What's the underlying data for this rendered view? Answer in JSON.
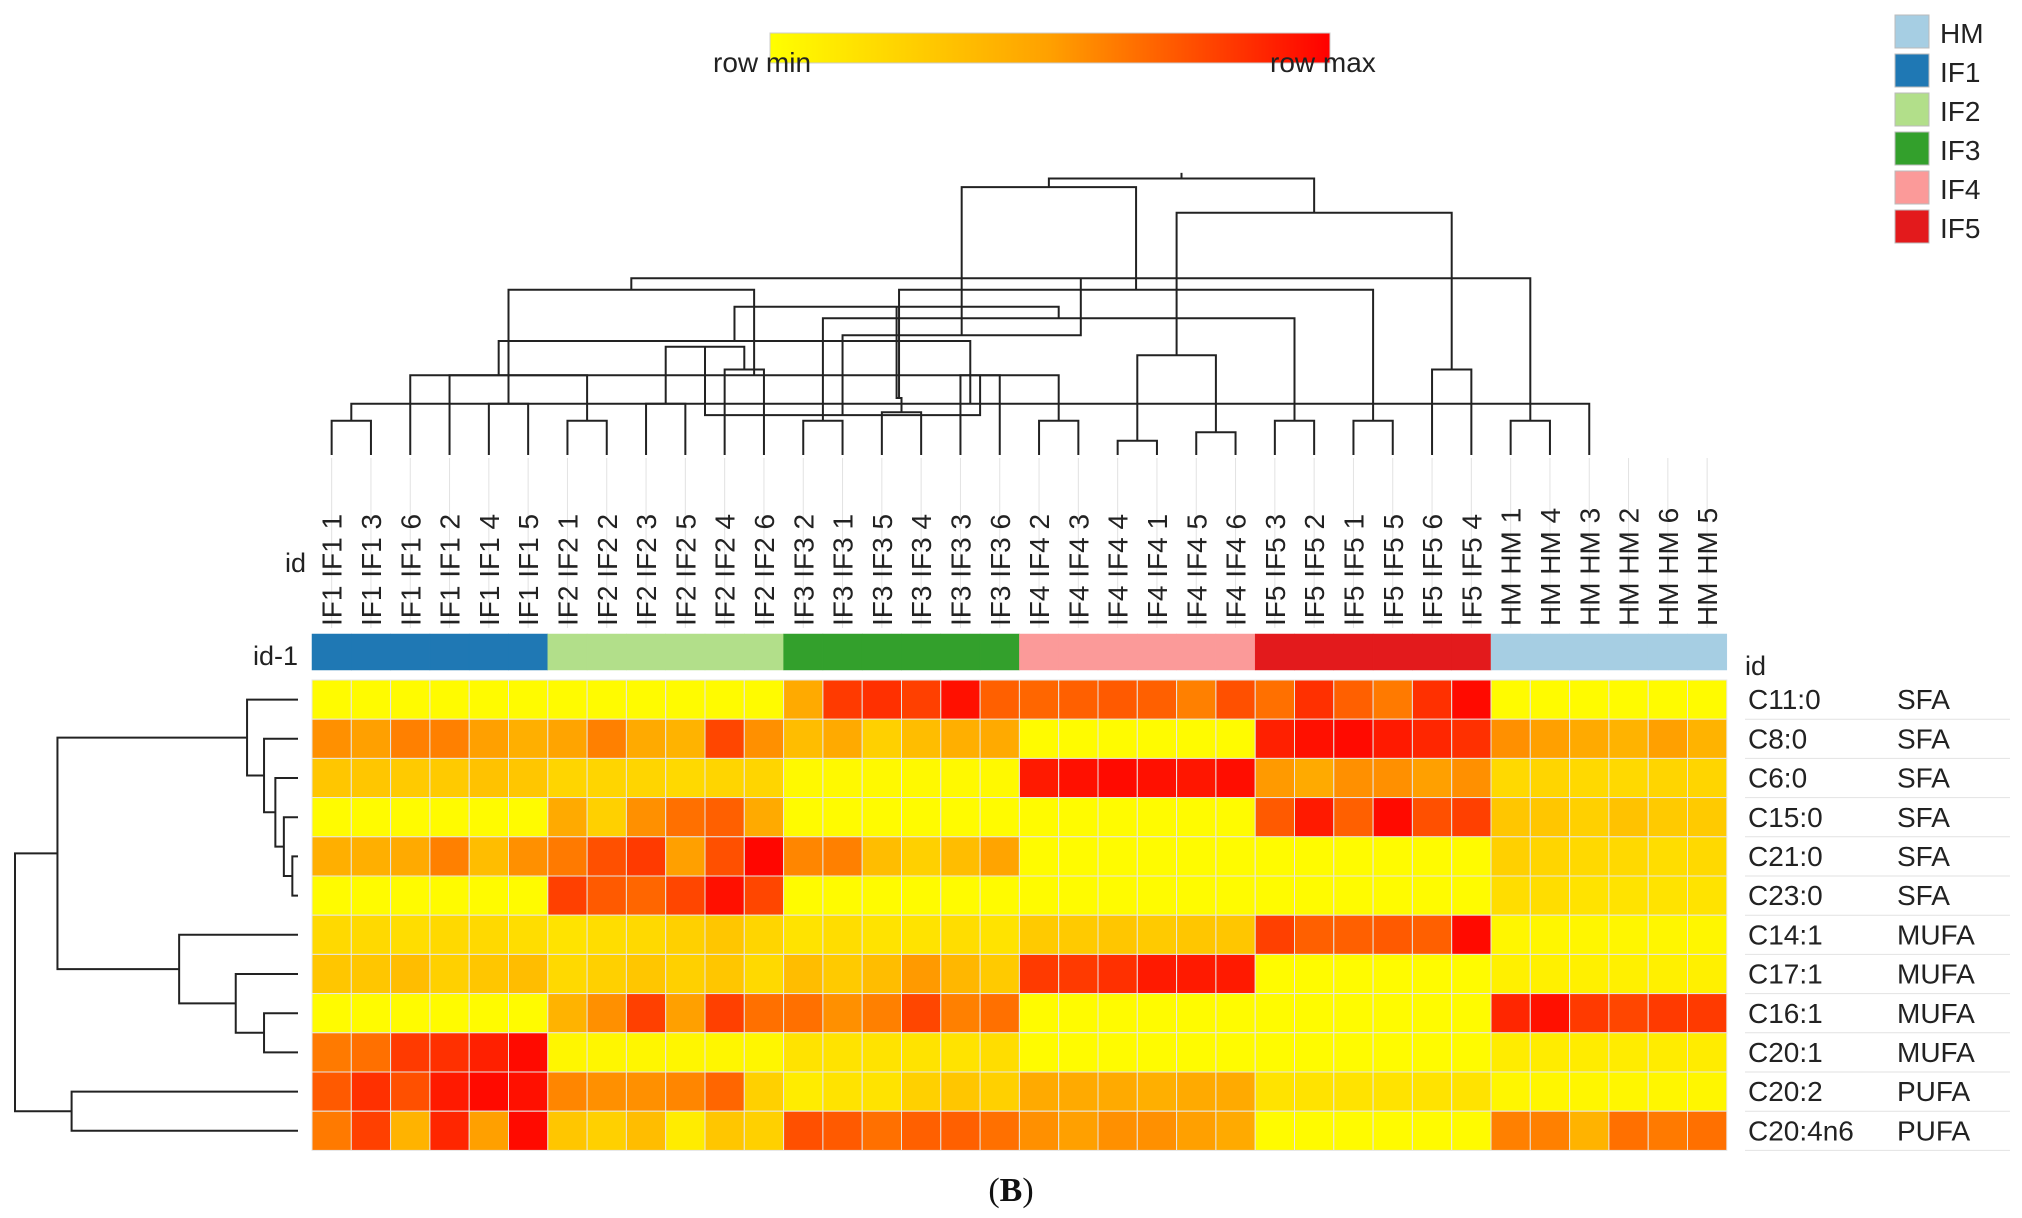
{
  "chart_data": {
    "type": "heatmap",
    "scale": {
      "min_label": "row min",
      "max_label": "row max",
      "colors": [
        "#FFFF00",
        "#FFA000",
        "#FF0000"
      ]
    },
    "legend": {
      "items": [
        {
          "label": "HM",
          "color": "#A6CEE3"
        },
        {
          "label": "IF1",
          "color": "#1F78B4"
        },
        {
          "label": "IF2",
          "color": "#B2DF8A"
        },
        {
          "label": "IF3",
          "color": "#33A02C"
        },
        {
          "label": "IF4",
          "color": "#FB9A99"
        },
        {
          "label": "IF5",
          "color": "#E31A1C"
        }
      ]
    },
    "col_header_label": "id",
    "annotation_label": "id-1",
    "row_header_label": "id",
    "columns": [
      {
        "label": "IF1 IF1 1",
        "group": "IF1"
      },
      {
        "label": "IF1 IF1 3",
        "group": "IF1"
      },
      {
        "label": "IF1 IF1 6",
        "group": "IF1"
      },
      {
        "label": "IF1 IF1 2",
        "group": "IF1"
      },
      {
        "label": "IF1 IF1 4",
        "group": "IF1"
      },
      {
        "label": "IF1 IF1 5",
        "group": "IF1"
      },
      {
        "label": "IF2 IF2 1",
        "group": "IF2"
      },
      {
        "label": "IF2 IF2 2",
        "group": "IF2"
      },
      {
        "label": "IF2 IF2 3",
        "group": "IF2"
      },
      {
        "label": "IF2 IF2 5",
        "group": "IF2"
      },
      {
        "label": "IF2 IF2 4",
        "group": "IF2"
      },
      {
        "label": "IF2 IF2 6",
        "group": "IF2"
      },
      {
        "label": "IF3 IF3 2",
        "group": "IF3"
      },
      {
        "label": "IF3 IF3 1",
        "group": "IF3"
      },
      {
        "label": "IF3 IF3 5",
        "group": "IF3"
      },
      {
        "label": "IF3 IF3 4",
        "group": "IF3"
      },
      {
        "label": "IF3 IF3 3",
        "group": "IF3"
      },
      {
        "label": "IF3 IF3 6",
        "group": "IF3"
      },
      {
        "label": "IF4 IF4 2",
        "group": "IF4"
      },
      {
        "label": "IF4 IF4 3",
        "group": "IF4"
      },
      {
        "label": "IF4 IF4 4",
        "group": "IF4"
      },
      {
        "label": "IF4 IF4 1",
        "group": "IF4"
      },
      {
        "label": "IF4 IF4 5",
        "group": "IF4"
      },
      {
        "label": "IF4 IF4 6",
        "group": "IF4"
      },
      {
        "label": "IF5 IF5 3",
        "group": "IF5"
      },
      {
        "label": "IF5 IF5 2",
        "group": "IF5"
      },
      {
        "label": "IF5 IF5 1",
        "group": "IF5"
      },
      {
        "label": "IF5 IF5 5",
        "group": "IF5"
      },
      {
        "label": "IF5 IF5 6",
        "group": "IF5"
      },
      {
        "label": "IF5 IF5 4",
        "group": "IF5"
      },
      {
        "label": "HM HM 1",
        "group": "HM"
      },
      {
        "label": "HM HM 4",
        "group": "HM"
      },
      {
        "label": "HM HM 3",
        "group": "HM"
      },
      {
        "label": "HM HM 2",
        "group": "HM"
      },
      {
        "label": "HM HM 6",
        "group": "HM"
      },
      {
        "label": "HM HM 5",
        "group": "HM"
      }
    ],
    "rows": [
      {
        "name": "C11:0",
        "class": "SFA",
        "values": [
          0.02,
          0.02,
          0.02,
          0.02,
          0.02,
          0.02,
          0.02,
          0.02,
          0.02,
          0.02,
          0.02,
          0.02,
          0.45,
          0.82,
          0.85,
          0.8,
          0.95,
          0.7,
          0.68,
          0.7,
          0.72,
          0.7,
          0.6,
          0.75,
          0.65,
          0.85,
          0.7,
          0.62,
          0.85,
          0.97,
          0.02,
          0.02,
          0.02,
          0.02,
          0.02,
          0.02
        ]
      },
      {
        "name": "C8:0",
        "class": "SFA",
        "values": [
          0.55,
          0.5,
          0.6,
          0.6,
          0.5,
          0.42,
          0.48,
          0.6,
          0.45,
          0.4,
          0.78,
          0.55,
          0.35,
          0.45,
          0.25,
          0.35,
          0.42,
          0.45,
          0.02,
          0.02,
          0.02,
          0.02,
          0.02,
          0.02,
          0.9,
          0.95,
          0.97,
          0.92,
          0.88,
          0.85,
          0.55,
          0.5,
          0.45,
          0.4,
          0.5,
          0.4
        ]
      },
      {
        "name": "C6:0",
        "class": "SFA",
        "values": [
          0.3,
          0.3,
          0.28,
          0.28,
          0.32,
          0.3,
          0.22,
          0.22,
          0.22,
          0.2,
          0.22,
          0.22,
          0.03,
          0.03,
          0.03,
          0.03,
          0.03,
          0.03,
          0.92,
          0.95,
          0.97,
          0.95,
          0.93,
          0.96,
          0.52,
          0.45,
          0.55,
          0.55,
          0.5,
          0.55,
          0.2,
          0.22,
          0.2,
          0.2,
          0.22,
          0.22
        ]
      },
      {
        "name": "C15:0",
        "class": "SFA",
        "values": [
          0.02,
          0.02,
          0.02,
          0.02,
          0.02,
          0.02,
          0.45,
          0.25,
          0.55,
          0.65,
          0.7,
          0.45,
          0.02,
          0.02,
          0.02,
          0.02,
          0.02,
          0.02,
          0.02,
          0.02,
          0.02,
          0.02,
          0.02,
          0.02,
          0.72,
          0.92,
          0.7,
          0.97,
          0.75,
          0.8,
          0.3,
          0.3,
          0.25,
          0.32,
          0.28,
          0.28
        ]
      },
      {
        "name": "C21:0",
        "class": "SFA",
        "values": [
          0.42,
          0.42,
          0.45,
          0.6,
          0.35,
          0.55,
          0.62,
          0.75,
          0.82,
          0.5,
          0.75,
          0.98,
          0.58,
          0.6,
          0.35,
          0.25,
          0.35,
          0.48,
          0.02,
          0.02,
          0.02,
          0.02,
          0.02,
          0.02,
          0.02,
          0.02,
          0.02,
          0.02,
          0.02,
          0.02,
          0.25,
          0.22,
          0.2,
          0.2,
          0.18,
          0.2
        ]
      },
      {
        "name": "C23:0",
        "class": "SFA",
        "values": [
          0.02,
          0.02,
          0.02,
          0.02,
          0.02,
          0.02,
          0.8,
          0.72,
          0.68,
          0.78,
          0.95,
          0.78,
          0.02,
          0.02,
          0.02,
          0.02,
          0.02,
          0.02,
          0.02,
          0.02,
          0.02,
          0.02,
          0.02,
          0.02,
          0.02,
          0.02,
          0.02,
          0.02,
          0.02,
          0.02,
          0.18,
          0.18,
          0.15,
          0.15,
          0.15,
          0.15
        ]
      },
      {
        "name": "C14:1",
        "class": "MUFA",
        "values": [
          0.2,
          0.2,
          0.18,
          0.2,
          0.2,
          0.18,
          0.15,
          0.18,
          0.2,
          0.25,
          0.3,
          0.22,
          0.15,
          0.18,
          0.15,
          0.15,
          0.18,
          0.15,
          0.28,
          0.28,
          0.3,
          0.28,
          0.3,
          0.3,
          0.8,
          0.7,
          0.7,
          0.72,
          0.7,
          0.97,
          0.05,
          0.05,
          0.05,
          0.05,
          0.05,
          0.05
        ]
      },
      {
        "name": "C17:1",
        "class": "MUFA",
        "values": [
          0.3,
          0.3,
          0.35,
          0.25,
          0.3,
          0.35,
          0.2,
          0.25,
          0.3,
          0.25,
          0.3,
          0.2,
          0.35,
          0.28,
          0.35,
          0.52,
          0.38,
          0.28,
          0.82,
          0.82,
          0.85,
          0.92,
          0.92,
          0.92,
          0.02,
          0.02,
          0.02,
          0.02,
          0.02,
          0.02,
          0.08,
          0.08,
          0.08,
          0.08,
          0.08,
          0.08
        ]
      },
      {
        "name": "C16:1",
        "class": "MUFA",
        "values": [
          0.02,
          0.02,
          0.02,
          0.02,
          0.02,
          0.02,
          0.4,
          0.55,
          0.8,
          0.5,
          0.8,
          0.65,
          0.65,
          0.55,
          0.6,
          0.78,
          0.6,
          0.65,
          0.02,
          0.02,
          0.02,
          0.02,
          0.02,
          0.02,
          0.02,
          0.02,
          0.02,
          0.02,
          0.02,
          0.02,
          0.88,
          0.95,
          0.82,
          0.78,
          0.82,
          0.82
        ]
      },
      {
        "name": "C20:1",
        "class": "MUFA",
        "values": [
          0.62,
          0.65,
          0.82,
          0.85,
          0.9,
          0.97,
          0.05,
          0.05,
          0.05,
          0.05,
          0.05,
          0.05,
          0.15,
          0.15,
          0.15,
          0.15,
          0.15,
          0.18,
          0.02,
          0.02,
          0.02,
          0.02,
          0.02,
          0.02,
          0.02,
          0.02,
          0.02,
          0.02,
          0.02,
          0.02,
          0.1,
          0.1,
          0.1,
          0.1,
          0.1,
          0.1
        ]
      },
      {
        "name": "C20:2",
        "class": "PUFA",
        "values": [
          0.72,
          0.85,
          0.75,
          0.92,
          0.97,
          0.95,
          0.58,
          0.55,
          0.55,
          0.58,
          0.68,
          0.25,
          0.1,
          0.15,
          0.15,
          0.25,
          0.3,
          0.25,
          0.45,
          0.45,
          0.45,
          0.42,
          0.45,
          0.45,
          0.15,
          0.15,
          0.15,
          0.15,
          0.15,
          0.15,
          0.05,
          0.05,
          0.05,
          0.05,
          0.05,
          0.05
        ]
      },
      {
        "name": "C20:4n6",
        "class": "PUFA",
        "values": [
          0.62,
          0.8,
          0.4,
          0.88,
          0.5,
          0.97,
          0.3,
          0.25,
          0.35,
          0.1,
          0.3,
          0.25,
          0.75,
          0.72,
          0.65,
          0.7,
          0.7,
          0.65,
          0.55,
          0.5,
          0.55,
          0.55,
          0.5,
          0.45,
          0.02,
          0.02,
          0.02,
          0.02,
          0.02,
          0.02,
          0.6,
          0.6,
          0.4,
          0.65,
          0.62,
          0.65
        ]
      }
    ],
    "col_dendrogram": [
      [
        0,
        1
      ],
      [
        6,
        7
      ],
      [
        12,
        13
      ],
      [
        18,
        19
      ],
      [
        24,
        25
      ],
      [
        30,
        31
      ],
      [
        36,
        32
      ],
      [
        2,
        37
      ],
      [
        4,
        5
      ],
      [
        3,
        39
      ],
      [
        38,
        40
      ],
      [
        8,
        9
      ],
      [
        10,
        11
      ],
      [
        42,
        43
      ],
      [
        44,
        45
      ],
      [
        14,
        15
      ],
      [
        16,
        17
      ],
      [
        47,
        48
      ],
      [
        46,
        49
      ],
      [
        41,
        50
      ],
      [
        20,
        21
      ],
      [
        22,
        23
      ],
      [
        52,
        53
      ],
      [
        54,
        51
      ],
      [
        26,
        27
      ],
      [
        28,
        29
      ],
      [
        56,
        57
      ],
      [
        58,
        55
      ],
      [
        59,
        60
      ],
      [
        61,
        62
      ],
      [
        63,
        64
      ],
      [
        65,
        66
      ],
      [
        67,
        68
      ],
      [
        69,
        70
      ]
    ],
    "col_dendrogram_heights": [
      0.12,
      0.12,
      0.12,
      0.12,
      0.12,
      0.12,
      0.18,
      0.28,
      0.18,
      0.28,
      0.48,
      0.18,
      0.3,
      0.4,
      0.58,
      0.15,
      0.28,
      0.38,
      0.52,
      0.62,
      0.05,
      0.08,
      0.14,
      0.2,
      0.12,
      0.3,
      0.35,
      0.42,
      0.58,
      0.85,
      0.94,
      0.97,
      0.99,
      1.0
    ],
    "row_dendrogram": [
      [
        4,
        5
      ],
      [
        3,
        12
      ],
      [
        2,
        13
      ],
      [
        1,
        14
      ],
      [
        0,
        15
      ],
      [
        8,
        9
      ],
      [
        7,
        17
      ],
      [
        6,
        18
      ],
      [
        16,
        19
      ],
      [
        10,
        11
      ],
      [
        20,
        21
      ]
    ],
    "row_dendrogram_heights": [
      0.02,
      0.05,
      0.08,
      0.12,
      0.18,
      0.12,
      0.22,
      0.42,
      0.85,
      0.8,
      1.0
    ],
    "caption": {
      "open": "(",
      "letter": "B",
      "close": ")"
    }
  }
}
